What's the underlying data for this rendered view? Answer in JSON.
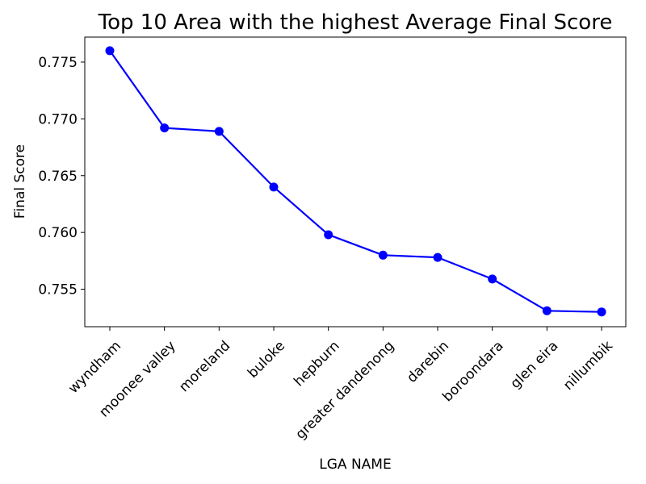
{
  "chart_data": {
    "type": "line",
    "title": "Top 10 Area with the highest Average Final Score",
    "xlabel": "LGA NAME",
    "ylabel": "Final Score",
    "categories": [
      "wyndham",
      "moonee valley",
      "moreland",
      "buloke",
      "hepburn",
      "greater dandenong",
      "darebin",
      "boroondara",
      "glen eira",
      "nillumbik"
    ],
    "series": [
      {
        "values": [
          0.776,
          0.7692,
          0.7689,
          0.764,
          0.7598,
          0.758,
          0.7578,
          0.7559,
          0.7531,
          0.753
        ]
      }
    ],
    "ylim": [
      0.7517,
      0.7772
    ],
    "yticks": [
      0.755,
      0.76,
      0.765,
      0.77,
      0.775
    ],
    "ytick_labels": [
      "0.755",
      "0.760",
      "0.765",
      "0.770",
      "0.775"
    ],
    "line_color": "#0000ff",
    "marker_color": "#0000ff",
    "grid": false,
    "legend": false
  }
}
